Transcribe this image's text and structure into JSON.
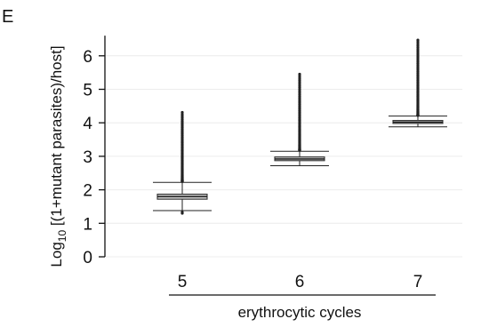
{
  "panel_label": "E",
  "chart_data": {
    "type": "box",
    "xlabel": "erythrocytic cycles",
    "ylabel_parts": [
      "Log",
      "10",
      " [(1+mutant parasites)/host]"
    ],
    "ylim": [
      0,
      6.6
    ],
    "yticks": [
      0,
      1,
      2,
      3,
      4,
      5,
      6
    ],
    "grid": true,
    "categories": [
      "5",
      "6",
      "7"
    ],
    "boxes": [
      {
        "category": "5",
        "lower_whisker": 1.38,
        "q1": 1.72,
        "median": 1.8,
        "q3": 1.87,
        "upper_whisker": 2.22,
        "outliers_low": [
          1.33,
          1.3
        ],
        "outliers_high_range": [
          2.25,
          4.31
        ]
      },
      {
        "category": "6",
        "lower_whisker": 2.72,
        "q1": 2.87,
        "median": 2.92,
        "q3": 2.98,
        "upper_whisker": 3.15,
        "outliers_low": [],
        "outliers_high_range": [
          3.18,
          5.45
        ]
      },
      {
        "category": "7",
        "lower_whisker": 3.88,
        "q1": 3.98,
        "median": 4.02,
        "q3": 4.07,
        "upper_whisker": 4.2,
        "outliers_low": [],
        "outliers_high_range": [
          4.22,
          6.47
        ]
      }
    ]
  }
}
